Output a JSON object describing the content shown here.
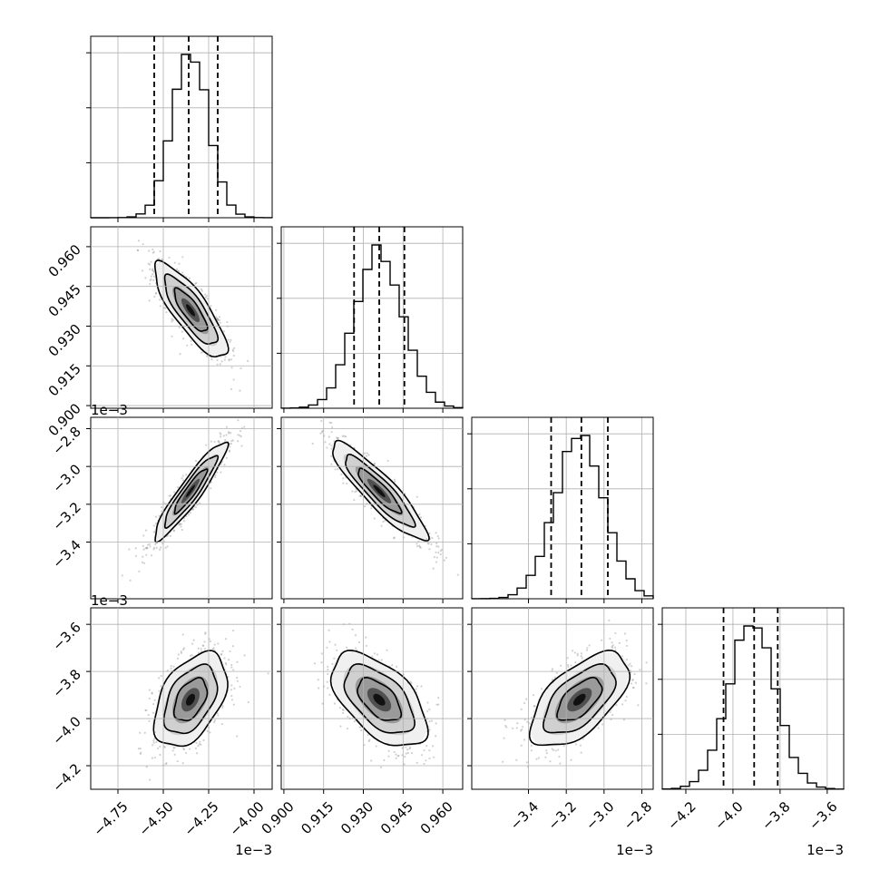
{
  "chart_data": {
    "type": "corner",
    "parameters": [
      {
        "index": 0,
        "range": [
          -4.9,
          -3.9
        ],
        "ticks": [
          -4.75,
          -4.5,
          -4.25,
          -4.0
        ],
        "tick_labels": [
          "−4.75",
          "−4.50",
          "−4.25",
          "−4.00"
        ],
        "offset_text": "1e−3",
        "mean": -4.35,
        "sigma": 0.1,
        "quantiles": [
          -4.55,
          -4.36,
          -4.2
        ]
      },
      {
        "index": 1,
        "range": [
          0.899,
          0.9675
        ],
        "ticks": [
          0.9,
          0.915,
          0.93,
          0.945,
          0.96
        ],
        "tick_labels": [
          "0.900",
          "0.915",
          "0.930",
          "0.945",
          "0.960"
        ],
        "offset_text": "",
        "mean": 0.936,
        "sigma": 0.009,
        "quantiles": [
          0.9265,
          0.936,
          0.9455
        ]
      },
      {
        "index": 2,
        "range": [
          -3.7,
          -2.74
        ],
        "ticks": [
          -3.4,
          -3.2,
          -3.0,
          -2.8
        ],
        "tick_labels": [
          "−3.4",
          "−3.2",
          "−3.0",
          "−2.8"
        ],
        "offset_text": "1e−3",
        "mean": -3.13,
        "sigma": 0.13,
        "quantiles": [
          -3.28,
          -3.12,
          -2.98
        ]
      },
      {
        "index": 3,
        "range": [
          -4.3,
          -3.53
        ],
        "ticks": [
          -4.2,
          -4.0,
          -3.8,
          -3.6
        ],
        "tick_labels": [
          "−4.2",
          "−4.0",
          "−3.8",
          "−3.6"
        ],
        "offset_text": "1e−3",
        "mean": -3.92,
        "sigma": 0.1,
        "quantiles": [
          -4.04,
          -3.91,
          -3.81
        ]
      }
    ],
    "pairs": [
      {
        "row": 1,
        "col": 0,
        "correlation": -0.82
      },
      {
        "row": 2,
        "col": 0,
        "correlation": 0.93
      },
      {
        "row": 2,
        "col": 1,
        "correlation": -0.9
      },
      {
        "row": 3,
        "col": 0,
        "correlation": 0.45
      },
      {
        "row": 3,
        "col": 1,
        "correlation": -0.55
      },
      {
        "row": 3,
        "col": 2,
        "correlation": 0.6
      }
    ],
    "histogram_bins": 20,
    "grid": true,
    "quantile_line_style": "dashed",
    "contour_levels": 3
  }
}
